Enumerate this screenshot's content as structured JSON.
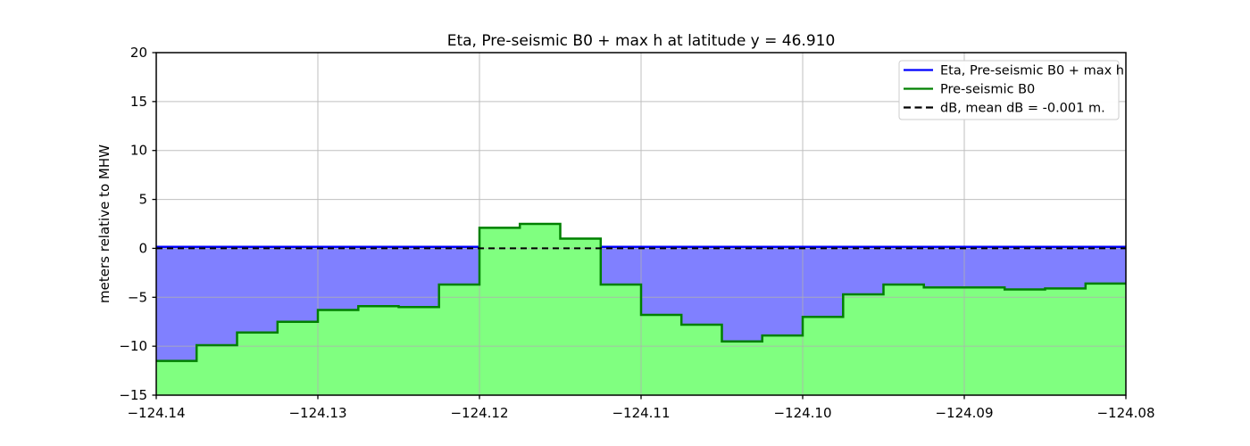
{
  "figure": {
    "title": "Eta, Pre-seismic B0 + max h at latitude y = 46.910",
    "ylabel": "meters relative to MHW"
  },
  "chart_data": {
    "type": "area",
    "title": "Eta, Pre-seismic B0 + max h at latitude y = 46.910",
    "xlabel": "",
    "ylabel": "meters relative to MHW",
    "xlim": [
      -124.14,
      -124.08
    ],
    "ylim": [
      -15,
      20
    ],
    "x_ticks": [
      -124.14,
      -124.13,
      -124.12,
      -124.11,
      -124.1,
      -124.09,
      -124.08
    ],
    "x_tick_labels": [
      "−124.14",
      "−124.13",
      "−124.12",
      "−124.11",
      "−124.10",
      "−124.09",
      "−124.08"
    ],
    "y_ticks": [
      -15,
      -10,
      -5,
      0,
      5,
      10,
      15,
      20
    ],
    "y_tick_labels": [
      "−15",
      "−10",
      "−5",
      "0",
      "5",
      "10",
      "15",
      "20"
    ],
    "grid": true,
    "colors": {
      "water_fill": "#8080ff",
      "land_fill": "#80ff80",
      "eta_line": "#0000ff",
      "b0_line": "#008000",
      "db_line": "#000000",
      "grid": "#b0b0b0",
      "frame": "#000000",
      "legend_border": "#cccccc",
      "legend_bg": "#ffffff"
    },
    "series": [
      {
        "name": "Eta, Pre-seismic B0 + max h",
        "type": "hline",
        "y": 0.15,
        "color": "#0000ff",
        "style": "solid"
      },
      {
        "name": "Pre-seismic B0",
        "type": "step",
        "color": "#008000",
        "fill": "#80ff80",
        "edges": [
          -124.14,
          -124.1375,
          -124.135,
          -124.1325,
          -124.13,
          -124.1275,
          -124.125,
          -124.1225,
          -124.12,
          -124.1175,
          -124.115,
          -124.1125,
          -124.11,
          -124.1075,
          -124.105,
          -124.1025,
          -124.1,
          -124.0975,
          -124.095,
          -124.0925,
          -124.09,
          -124.0875,
          -124.085,
          -124.0825,
          -124.08
        ],
        "values": [
          -11.5,
          -9.9,
          -8.6,
          -7.5,
          -6.3,
          -5.9,
          -6.0,
          -3.7,
          2.1,
          2.5,
          1.0,
          -3.7,
          -6.8,
          -7.8,
          -9.5,
          -8.9,
          -7.0,
          -4.7,
          -3.7,
          -4.0,
          -4.0,
          -4.2,
          -4.1,
          -3.6
        ]
      },
      {
        "name": "dB, mean dB = -0.001 m.",
        "type": "hline",
        "y": 0.0,
        "mean_dB_m": -0.001,
        "color": "#000000",
        "style": "dashed"
      }
    ],
    "legend": {
      "position": "upper right",
      "entries": [
        {
          "label": "Eta, Pre-seismic B0 + max h",
          "color": "#0000ff",
          "dash": null
        },
        {
          "label": "Pre-seismic B0",
          "color": "#008000",
          "dash": null
        },
        {
          "label": "dB, mean dB = -0.001 m.",
          "color": "#000000",
          "dash": "8 4.5"
        }
      ]
    }
  }
}
